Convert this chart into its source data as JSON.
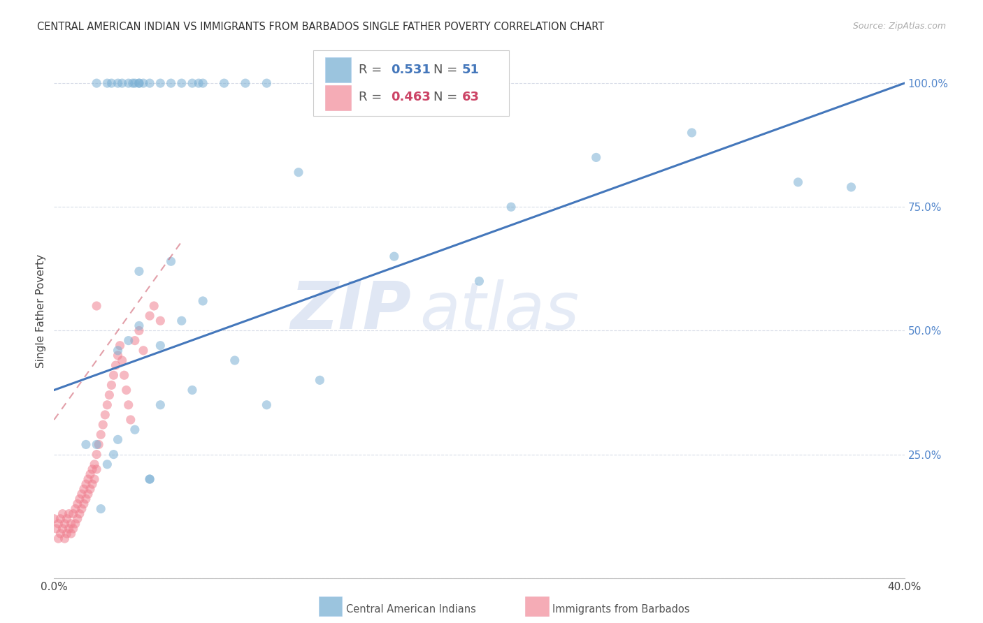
{
  "title": "CENTRAL AMERICAN INDIAN VS IMMIGRANTS FROM BARBADOS SINGLE FATHER POVERTY CORRELATION CHART",
  "source": "Source: ZipAtlas.com",
  "ylabel": "Single Father Poverty",
  "xlim": [
    0.0,
    0.4
  ],
  "ylim": [
    0.0,
    1.08
  ],
  "background_color": "#ffffff",
  "grid_color": "#d8dce8",
  "watermark_zip": "ZIP",
  "watermark_atlas": "atlas",
  "legend_R1": "0.531",
  "legend_N1": "51",
  "legend_R2": "0.463",
  "legend_N2": "63",
  "blue_color": "#7ab0d4",
  "pink_color": "#f08090",
  "blue_line_color": "#4477bb",
  "pink_line_color": "#d06070",
  "blue_scatter_x": [
    0.02,
    0.025,
    0.027,
    0.03,
    0.032,
    0.035,
    0.037,
    0.038,
    0.04,
    0.04,
    0.042,
    0.045,
    0.05,
    0.055,
    0.06,
    0.065,
    0.068,
    0.07,
    0.08,
    0.09,
    0.1,
    0.115,
    0.16,
    0.2,
    0.215,
    0.255,
    0.3,
    0.35,
    0.375,
    0.05,
    0.06,
    0.04,
    0.055,
    0.07,
    0.085,
    0.1,
    0.125,
    0.03,
    0.035,
    0.04,
    0.045,
    0.025,
    0.03,
    0.02,
    0.05,
    0.065,
    0.015,
    0.022,
    0.028,
    0.038,
    0.045
  ],
  "blue_scatter_y": [
    1.0,
    1.0,
    1.0,
    1.0,
    1.0,
    1.0,
    1.0,
    1.0,
    1.0,
    1.0,
    1.0,
    1.0,
    1.0,
    1.0,
    1.0,
    1.0,
    1.0,
    1.0,
    1.0,
    1.0,
    1.0,
    0.82,
    0.65,
    0.6,
    0.75,
    0.85,
    0.9,
    0.8,
    0.79,
    0.47,
    0.52,
    0.62,
    0.64,
    0.56,
    0.44,
    0.35,
    0.4,
    0.46,
    0.48,
    0.51,
    0.2,
    0.23,
    0.28,
    0.27,
    0.35,
    0.38,
    0.27,
    0.14,
    0.25,
    0.3,
    0.2
  ],
  "pink_scatter_x": [
    0.0,
    0.001,
    0.002,
    0.002,
    0.003,
    0.003,
    0.004,
    0.004,
    0.005,
    0.005,
    0.006,
    0.006,
    0.007,
    0.007,
    0.008,
    0.008,
    0.009,
    0.009,
    0.01,
    0.01,
    0.011,
    0.011,
    0.012,
    0.012,
    0.013,
    0.013,
    0.014,
    0.014,
    0.015,
    0.015,
    0.016,
    0.016,
    0.017,
    0.017,
    0.018,
    0.018,
    0.019,
    0.019,
    0.02,
    0.02,
    0.021,
    0.022,
    0.023,
    0.024,
    0.025,
    0.026,
    0.027,
    0.028,
    0.029,
    0.03,
    0.031,
    0.032,
    0.033,
    0.034,
    0.035,
    0.036,
    0.038,
    0.04,
    0.042,
    0.045,
    0.047,
    0.05,
    0.02
  ],
  "pink_scatter_y": [
    0.12,
    0.1,
    0.08,
    0.11,
    0.09,
    0.12,
    0.1,
    0.13,
    0.08,
    0.11,
    0.09,
    0.12,
    0.1,
    0.13,
    0.09,
    0.11,
    0.1,
    0.13,
    0.11,
    0.14,
    0.12,
    0.15,
    0.13,
    0.16,
    0.14,
    0.17,
    0.15,
    0.18,
    0.16,
    0.19,
    0.17,
    0.2,
    0.18,
    0.21,
    0.19,
    0.22,
    0.2,
    0.23,
    0.22,
    0.25,
    0.27,
    0.29,
    0.31,
    0.33,
    0.35,
    0.37,
    0.39,
    0.41,
    0.43,
    0.45,
    0.47,
    0.44,
    0.41,
    0.38,
    0.35,
    0.32,
    0.48,
    0.5,
    0.46,
    0.53,
    0.55,
    0.52,
    0.55
  ],
  "blue_line_x": [
    0.0,
    0.4
  ],
  "blue_line_y": [
    0.38,
    1.0
  ],
  "pink_line_x": [
    0.0,
    0.06
  ],
  "pink_line_y": [
    0.32,
    0.68
  ]
}
